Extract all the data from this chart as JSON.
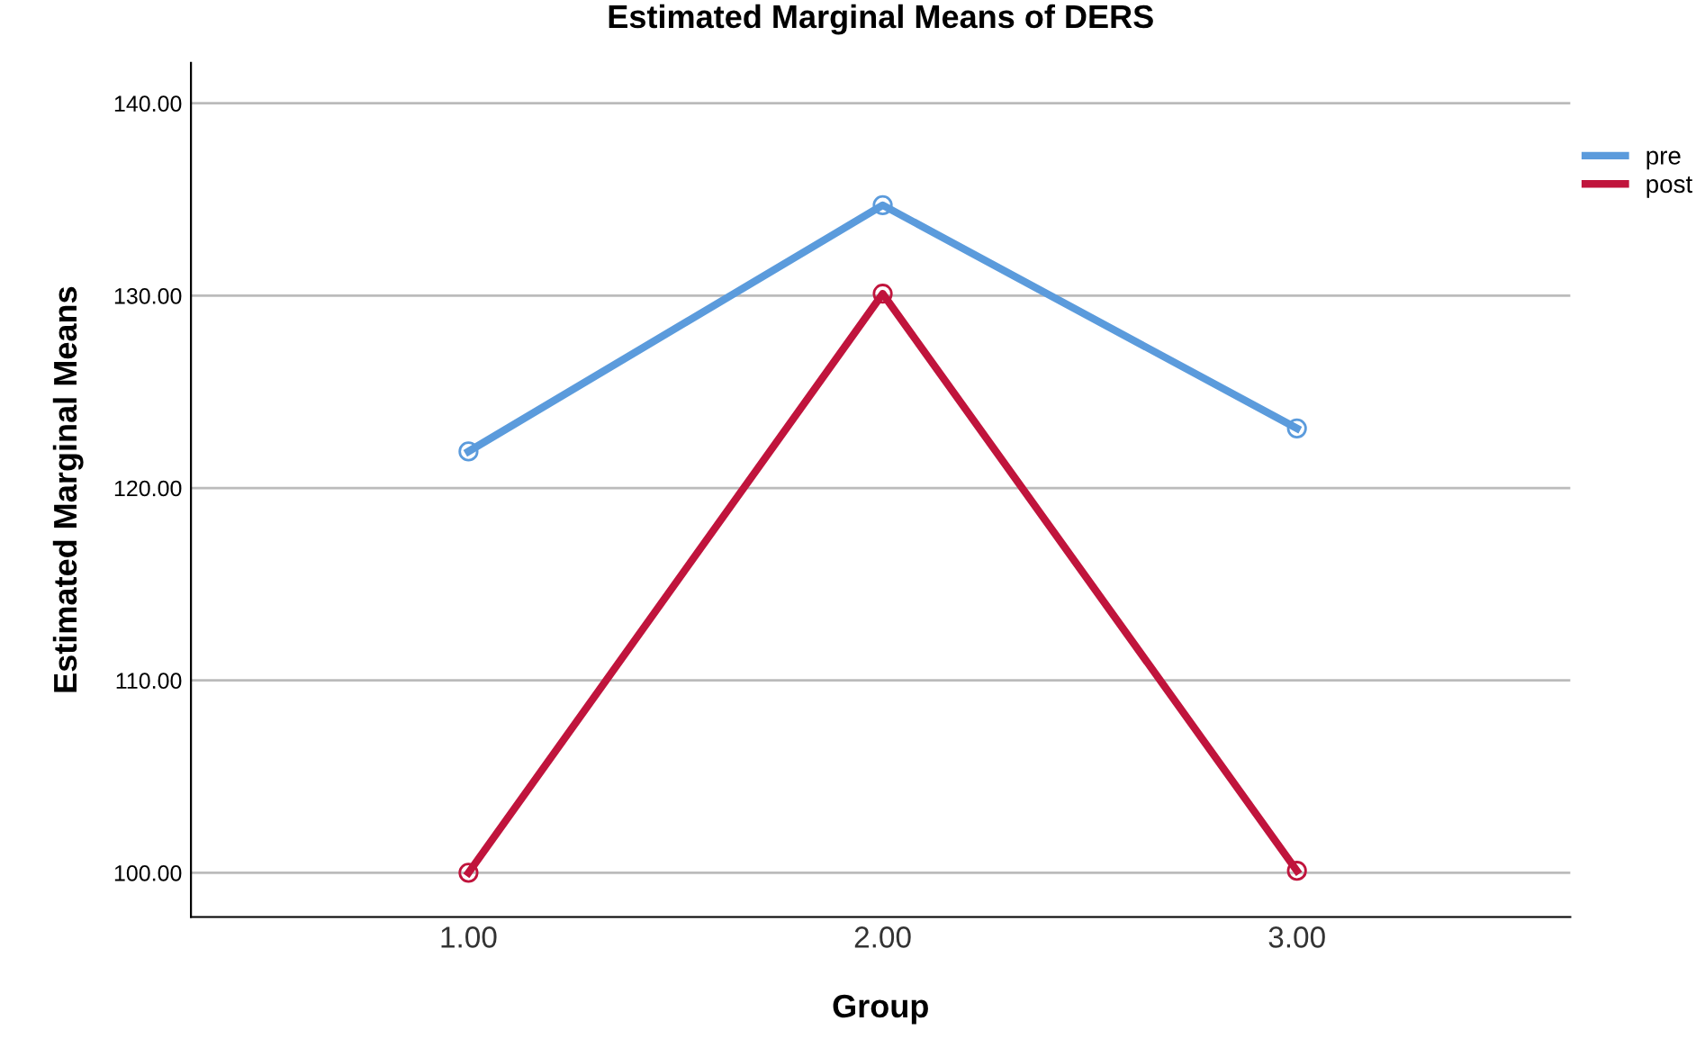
{
  "chart_data": {
    "type": "line",
    "title": "Estimated Marginal Means of DERS",
    "xlabel": "Group",
    "ylabel": "Estimated Marginal Means",
    "categories": [
      "1.00",
      "2.00",
      "3.00"
    ],
    "series": [
      {
        "name": "pre",
        "color": "#5b9bdc",
        "values": [
          121.9,
          134.7,
          123.1
        ]
      },
      {
        "name": "post",
        "color": "#c0143c",
        "values": [
          100.0,
          130.1,
          100.1
        ]
      }
    ],
    "ylim": [
      97.7,
      142.1
    ],
    "yticks": [
      {
        "value": 100,
        "label": "100.00"
      },
      {
        "value": 110,
        "label": "110.00"
      },
      {
        "value": 120,
        "label": "120.00"
      },
      {
        "value": 130,
        "label": "130.00"
      },
      {
        "value": 140,
        "label": "140.00"
      }
    ],
    "grid": "y",
    "legend": "top right",
    "marker": "circle",
    "line_style": "solid"
  }
}
